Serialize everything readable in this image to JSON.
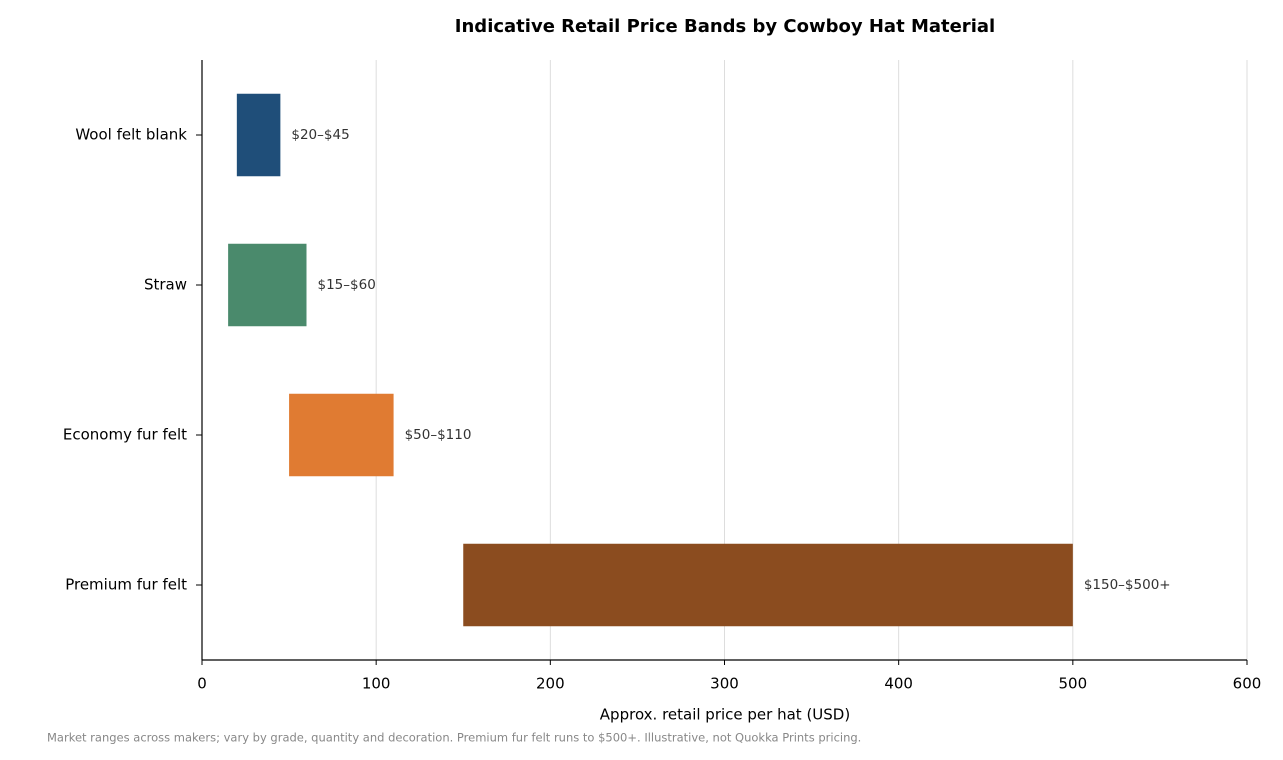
{
  "chart_data": {
    "type": "range-bar",
    "orientation": "horizontal",
    "title": "Indicative Retail Price Bands by Cowboy Hat Material",
    "x_label": "Approx. retail price per hat (USD)",
    "footnote": "Market ranges across makers; vary by grade, quantity and decoration. Premium fur felt runs to $500+. Illustrative, not Quokka Prints pricing.",
    "categories": [
      "Wool felt blank",
      "Straw",
      "Economy fur felt",
      "Premium fur felt"
    ],
    "low": [
      20,
      15,
      50,
      150
    ],
    "high": [
      45,
      60,
      110,
      500
    ],
    "value_labels": [
      "$20–$45",
      "$15–$60",
      "$50–$110",
      "$150–$500+"
    ],
    "colors": [
      "#1f4e79",
      "#4a8a6c",
      "#e07b32",
      "#8b4c1f"
    ],
    "xlim": [
      0,
      600
    ],
    "xticks": [
      0,
      100,
      200,
      300,
      400,
      500,
      600
    ],
    "grid": true
  }
}
